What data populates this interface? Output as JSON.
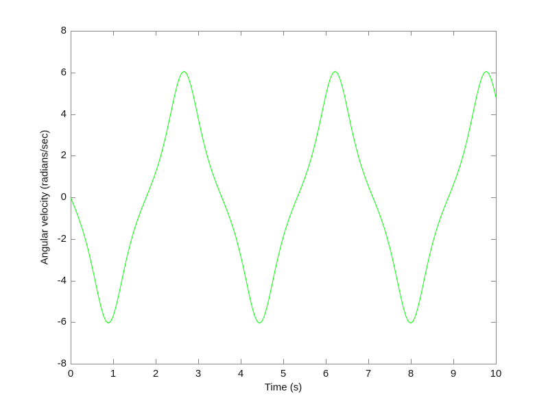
{
  "figure": {
    "background_color": "#ffffff",
    "axes_color": "#878787",
    "text_color": "#111111"
  },
  "chart_data": {
    "type": "line",
    "title": "",
    "xlabel": "Time (s)",
    "ylabel": "Angular velocity (radians/sec)",
    "xlim": [
      0,
      10
    ],
    "ylim": [
      -8,
      8
    ],
    "x_ticks": [
      0,
      1,
      2,
      3,
      4,
      5,
      6,
      7,
      8,
      9,
      10
    ],
    "x_tick_labels": [
      "0",
      "1",
      "2",
      "3",
      "4",
      "5",
      "6",
      "7",
      "8",
      "9",
      "10"
    ],
    "y_ticks": [
      -8,
      -6,
      -4,
      -2,
      0,
      2,
      4,
      6,
      8
    ],
    "y_tick_labels": [
      "-8",
      "-6",
      "-4",
      "-2",
      "0",
      "2",
      "4",
      "6",
      "8"
    ],
    "grid": false,
    "legend": null,
    "box": true,
    "tick_direction": "in",
    "key_points": {
      "description": "Nonlinear pendulum angular velocity: starts at 0, sharp rounded extremes of +/-6.05, flattened zero crossings, period 3.553 s",
      "maxima": [
        [
          2.665,
          6.05
        ],
        [
          6.219,
          6.05
        ],
        [
          9.772,
          6.05
        ]
      ],
      "minima": [
        [
          0.888,
          -6.05
        ],
        [
          4.442,
          -6.05
        ],
        [
          7.996,
          -6.05
        ]
      ],
      "zero_crossings": [
        0.0,
        1.777,
        3.554,
        5.331,
        7.108,
        8.885
      ],
      "end_value": [
        10.0,
        4.82
      ]
    },
    "series": [
      {
        "name": "angular velocity",
        "color": "#00ff00",
        "line_width": 1,
        "x_start": 0,
        "x_step": 0.0555234,
        "y_values": [
          0,
          -0.278,
          -0.569,
          -0.872,
          -1.195,
          -1.539,
          -1.925,
          -2.347,
          -2.801,
          -3.297,
          -3.818,
          -4.353,
          -4.876,
          -5.338,
          -5.718,
          -5.965,
          -6.052,
          -5.965,
          -5.718,
          -5.338,
          -4.876,
          -4.353,
          -3.818,
          -3.297,
          -2.801,
          -2.347,
          -1.925,
          -1.539,
          -1.195,
          -0.872,
          -0.569,
          -0.278,
          0,
          0.278,
          0.569,
          0.872,
          1.195,
          1.539,
          1.925,
          2.347,
          2.801,
          3.297,
          3.818,
          4.353,
          4.876,
          5.338,
          5.718,
          5.965,
          6.052,
          5.965,
          5.718,
          5.338,
          4.876,
          4.353,
          3.818,
          3.297,
          2.801,
          2.347,
          1.925,
          1.539,
          1.195,
          0.872,
          0.569,
          0.278,
          0,
          -0.278,
          -0.569,
          -0.872,
          -1.195,
          -1.539,
          -1.925,
          -2.347,
          -2.801,
          -3.297,
          -3.818,
          -4.353,
          -4.876,
          -5.338,
          -5.718,
          -5.965,
          -6.052,
          -5.965,
          -5.718,
          -5.338,
          -4.876,
          -4.353,
          -3.818,
          -3.297,
          -2.801,
          -2.347,
          -1.925,
          -1.539,
          -1.195,
          -0.872,
          -0.569,
          -0.278,
          0,
          0.278,
          0.569,
          0.872,
          1.195,
          1.539,
          1.925,
          2.347,
          2.801,
          3.297,
          3.818,
          4.353,
          4.876,
          5.338,
          5.718,
          5.965,
          6.052,
          5.965,
          5.718,
          5.338,
          4.876,
          4.353,
          3.818,
          3.297,
          2.801,
          2.347,
          1.925,
          1.539,
          1.195,
          0.872,
          0.569,
          0.278,
          0,
          -0.278,
          -0.569,
          -0.872,
          -1.195,
          -1.539,
          -1.925,
          -2.347,
          -2.801,
          -3.297,
          -3.818,
          -4.353,
          -4.876,
          -5.338,
          -5.718,
          -5.965,
          -6.052,
          -5.965,
          -5.718,
          -5.338,
          -4.876,
          -4.353,
          -3.818,
          -3.297,
          -2.801,
          -2.347,
          -1.925,
          -1.539,
          -1.195,
          -0.872,
          -0.569,
          -0.278,
          0,
          0.278,
          0.569,
          0.872,
          1.195,
          1.539,
          1.925,
          2.347,
          2.801,
          3.297,
          3.818,
          4.353,
          4.876,
          5.338,
          5.718,
          5.965,
          6.052,
          5.965,
          5.718,
          5.338,
          4.876,
          4.823
        ]
      }
    ]
  }
}
